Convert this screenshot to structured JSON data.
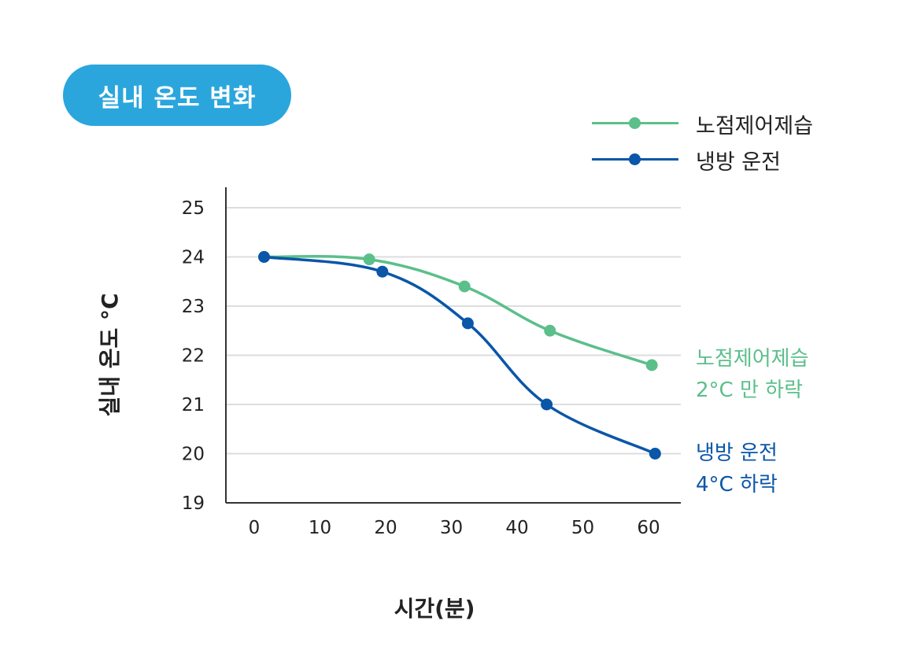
{
  "chart_data": {
    "type": "line",
    "title": "실내 온도 변화",
    "xlabel": "시간(분)",
    "ylabel": "실내 온도 °C",
    "xlim": [
      -5,
      65
    ],
    "ylim": [
      19,
      25
    ],
    "x_ticks": [
      0,
      10,
      20,
      30,
      40,
      50,
      60
    ],
    "y_ticks": [
      19,
      20,
      21,
      22,
      23,
      24,
      25
    ],
    "grid": "horizontal",
    "legend_position": "top-right",
    "series": [
      {
        "name": "노점제어제습",
        "color": "#5bbf8a",
        "x": [
          1.5,
          17.5,
          32,
          45,
          60.5
        ],
        "y": [
          24.0,
          23.95,
          23.4,
          22.5,
          21.8
        ]
      },
      {
        "name": "냉방 운전",
        "color": "#0a56a8",
        "x": [
          1.5,
          19.5,
          32.5,
          44.5,
          61
        ],
        "y": [
          24.0,
          23.7,
          22.65,
          21.0,
          20.0
        ]
      }
    ],
    "annotations": [
      {
        "series": "노점제어제습",
        "lines": [
          "노점제어제습",
          "2°C 만 하락"
        ]
      },
      {
        "series": "냉방 운전",
        "lines": [
          "냉방 운전",
          "4°C 하락"
        ]
      }
    ]
  }
}
